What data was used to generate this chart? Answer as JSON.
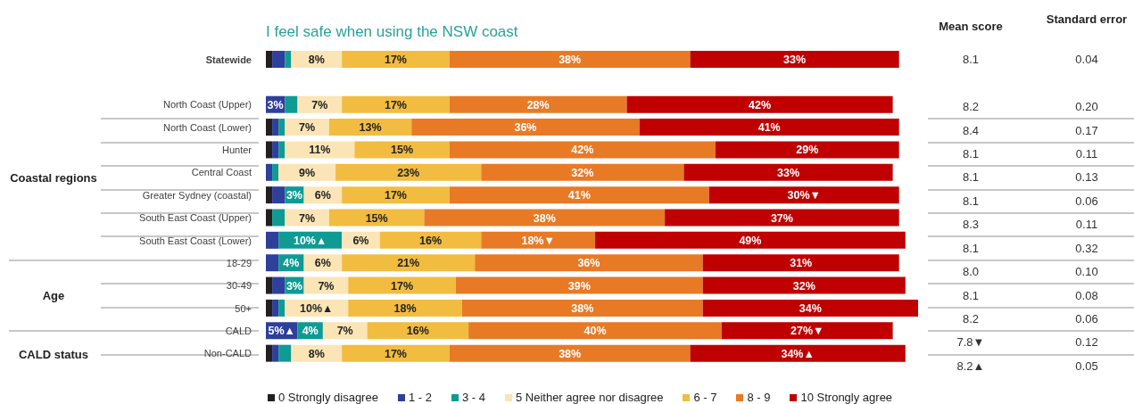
{
  "chart_data": [
    {
      "type": "bar",
      "orientation": "horizontal",
      "stacked": true,
      "title": "I feel safe when using the NSW coast",
      "tick_labels": "y",
      "legend": "bottom",
      "annotations": [
        "Coastal regions",
        "Age",
        "CALD status"
      ],
      "categories": [
        "Statewide",
        null,
        "North Coast (Upper)",
        "North Coast (Lower)",
        "Hunter",
        "Central Coast",
        "Greater Sydney (coastal)",
        "South East Coast (Upper)",
        "South East Coast (Lower)",
        "18-29",
        "30-49",
        "50+",
        "CALD",
        "Non-CALD"
      ],
      "series": [
        {
          "name": "0  Strongly disagree",
          "color": "#231f20",
          "values": [
            1,
            null,
            0,
            1,
            1,
            0,
            1,
            1,
            0,
            0,
            1,
            1,
            0,
            1
          ],
          "value_labels": [
            null,
            null,
            null,
            null,
            null,
            null,
            null,
            null,
            null,
            null,
            null,
            null,
            null,
            null
          ]
        },
        {
          "name": "1 - 2",
          "color": "#2e3f9c",
          "values": [
            2,
            null,
            3,
            1,
            1,
            1,
            2,
            0,
            2,
            2,
            2,
            1,
            5,
            1
          ],
          "value_labels": [
            null,
            null,
            "3%",
            null,
            null,
            null,
            null,
            null,
            null,
            null,
            null,
            null,
            "5%▲",
            null
          ]
        },
        {
          "name": "3 - 4",
          "color": "#0f9a94",
          "values": [
            1,
            null,
            2,
            1,
            1,
            1,
            3,
            2,
            10,
            4,
            3,
            1,
            4,
            2
          ],
          "value_labels": [
            null,
            null,
            null,
            null,
            null,
            null,
            "3%",
            null,
            "10%▲",
            "4%",
            "3%",
            null,
            "4%",
            null
          ]
        },
        {
          "name": "5 Neither agree nor disagree",
          "color": "#fbe5b6",
          "values": [
            8,
            null,
            7,
            7,
            11,
            9,
            6,
            7,
            6,
            6,
            7,
            10,
            7,
            8
          ],
          "value_labels": [
            "8%",
            null,
            "7%",
            "7%",
            "11%",
            "9%",
            "6%",
            "7%",
            "6%",
            "6%",
            "7%",
            "10%▲",
            "7%",
            "8%"
          ]
        },
        {
          "name": "6 - 7",
          "color": "#f2bc41",
          "values": [
            17,
            null,
            17,
            13,
            15,
            23,
            17,
            15,
            16,
            21,
            17,
            18,
            16,
            17
          ],
          "value_labels": [
            "17%",
            null,
            "17%",
            "13%",
            "15%",
            "23%",
            "17%",
            "15%",
            "16%",
            "21%",
            "17%",
            "18%",
            "16%",
            "17%"
          ]
        },
        {
          "name": "8 - 9",
          "color": "#e87a26",
          "values": [
            38,
            null,
            28,
            36,
            42,
            32,
            41,
            38,
            18,
            36,
            39,
            38,
            40,
            38
          ],
          "value_labels": [
            "38%",
            null,
            "28%",
            "36%",
            "42%",
            "32%",
            "41%",
            "38%",
            "18%▼",
            "36%",
            "39%",
            "38%",
            "40%",
            "38%"
          ]
        },
        {
          "name": "10 Strongly agree",
          "color": "#c00000",
          "values": [
            33,
            null,
            42,
            41,
            29,
            33,
            30,
            37,
            49,
            31,
            32,
            34,
            27,
            34
          ],
          "value_labels": [
            "33%",
            null,
            "42%",
            "41%",
            "29%",
            "33%",
            "30%▼",
            "37%",
            "49%",
            "31%",
            "32%",
            "34%",
            "27%▼",
            "34%▲"
          ]
        }
      ]
    },
    {
      "type": "other",
      "annotations": [
        "Mean score",
        "Standard error",
        "8.1",
        "0.04",
        "8.2",
        "0.20",
        "8.4",
        "0.17",
        "8.1",
        "0.11",
        "8.1",
        "0.13",
        "8.1",
        "0.06",
        "8.3",
        "0.11",
        "8.1",
        "0.32",
        "8.0",
        "0.10",
        "8.1",
        "0.08",
        "8.2",
        "0.06",
        "7.8▼",
        "0.12",
        "8.2▲",
        "0.05"
      ]
    }
  ]
}
